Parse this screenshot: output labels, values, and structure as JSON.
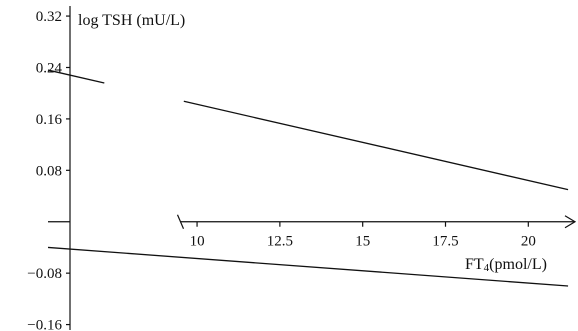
{
  "chart_data": {
    "type": "line",
    "ylabel": "log TSH (mU/L)",
    "xlabel_main": "FT",
    "xlabel_sub": "4",
    "xlabel_unit": "(pmol/L)",
    "y_ticks": [
      {
        "value": 0.32,
        "label": "0.32"
      },
      {
        "value": 0.24,
        "label": "0.24"
      },
      {
        "value": 0.16,
        "label": "0.16"
      },
      {
        "value": 0.08,
        "label": "0.08"
      },
      {
        "value": -0.08,
        "label": "−0.08"
      },
      {
        "value": -0.16,
        "label": "−0.16"
      }
    ],
    "x_ticks": [
      {
        "value": 10,
        "label": "10"
      },
      {
        "value": 12.5,
        "label": "12.5"
      },
      {
        "value": 15,
        "label": "15"
      },
      {
        "value": 17.5,
        "label": "17.5"
      },
      {
        "value": 20,
        "label": "20"
      }
    ],
    "xlim": [
      5.5,
      21.5
    ],
    "ylim": [
      -0.17,
      0.345
    ],
    "x_axis_start": 9.5,
    "series": [
      {
        "x": [
          5.5,
          21.2
        ],
        "y": [
          0.236,
          0.05
        ],
        "gap_x": [
          7.2,
          9.6
        ]
      },
      {
        "x": [
          5.5,
          21.2
        ],
        "y": [
          -0.04,
          -0.1
        ]
      }
    ]
  }
}
